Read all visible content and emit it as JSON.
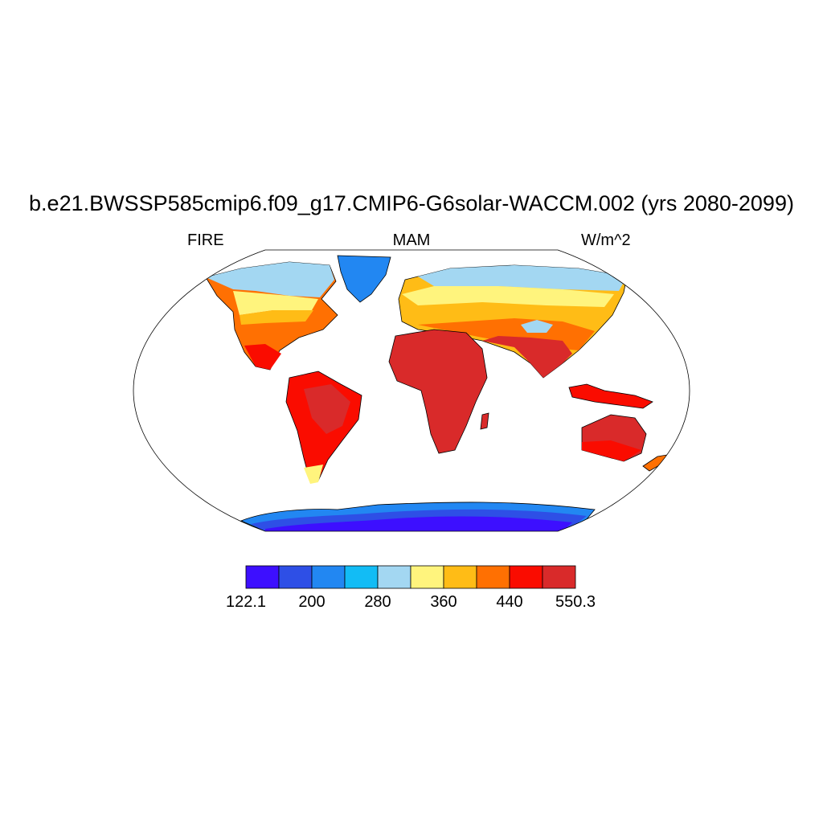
{
  "title": "b.e21.BWSSP585cmip6.f09_g17.CMIP6-G6solar-WACCM.002 (yrs 2080-2099)",
  "left_string": "FIRE",
  "center_string": "MAM",
  "right_string": "W/m^2",
  "colorbar": {
    "colors": [
      "#3d0fff",
      "#2e4fe6",
      "#2287f2",
      "#12bcf5",
      "#a3d7f2",
      "#fff47d",
      "#ffbc16",
      "#ff7002",
      "#fa0c00",
      "#d92a2a"
    ],
    "labels": [
      "122.1",
      "200",
      "280",
      "360",
      "440",
      "550.3"
    ]
  },
  "colors": {
    "land_outline": "#000000",
    "map_border": "#000000",
    "ocean": "#ffffff"
  }
}
